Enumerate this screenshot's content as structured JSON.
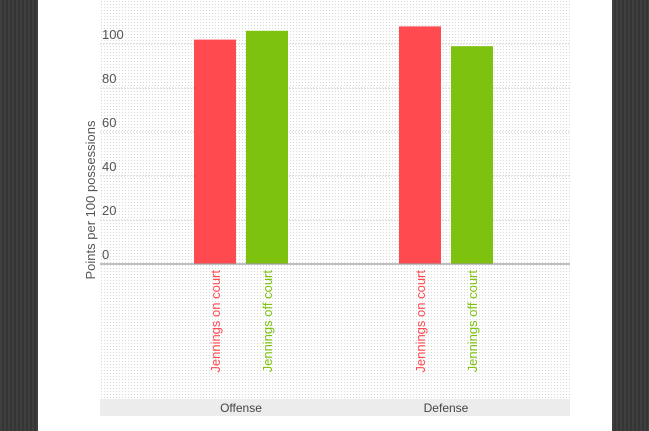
{
  "chart_data": {
    "type": "bar",
    "ylabel": "Points per 100 possessions",
    "ylim": [
      0,
      110
    ],
    "yticks": [
      "0",
      "20",
      "40",
      "60",
      "80",
      "100"
    ],
    "groups": [
      "Offense",
      "Defense"
    ],
    "series": [
      {
        "name": "Jennings on court",
        "color": "#ff4a4f",
        "values": [
          102,
          108
        ]
      },
      {
        "name": "Jennings off court",
        "color": "#7cc20e",
        "values": [
          106,
          99
        ]
      }
    ],
    "grid": true
  }
}
